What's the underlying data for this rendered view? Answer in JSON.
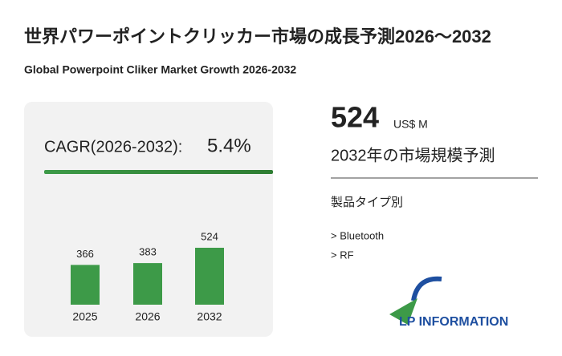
{
  "title": "世界パワーポイントクリッカー市場の成長予測2026～2032",
  "subtitle": "Global Powerpoint Cliker Market Growth 2026-2032",
  "cagr": {
    "label": "CAGR(2026-2032):",
    "value": "5.4%"
  },
  "highlight": {
    "value": "524",
    "unit": "US$ M",
    "caption": "2032年の市場規模予測"
  },
  "segments": {
    "title": "製品タイプ別",
    "items": [
      "> Bluetooth",
      "> RF"
    ]
  },
  "logo": "LP INFORMATION",
  "chart_data": {
    "type": "bar",
    "categories": [
      "2025",
      "2026",
      "2032"
    ],
    "values": [
      366,
      383,
      524
    ],
    "color": "#3d9a48"
  }
}
